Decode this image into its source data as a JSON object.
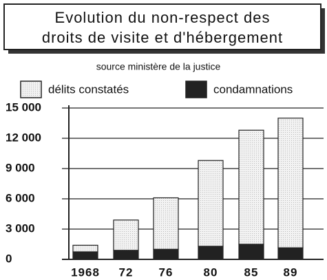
{
  "chart_data": {
    "type": "stacked_bar",
    "title": [
      "Evolution du non-respect des",
      "droits de visite et d'hébergement"
    ],
    "subtitle": "source   ministère de la justice",
    "categories": [
      "1968",
      "72",
      "76",
      "80",
      "85",
      "89"
    ],
    "series": [
      {
        "name": "condamnations",
        "color": "#222222",
        "values": [
          750,
          900,
          1000,
          1300,
          1500,
          1150
        ]
      },
      {
        "name": "délits constatés",
        "color": "#eeeeee",
        "values": [
          650,
          3000,
          5100,
          8500,
          11300,
          12850
        ]
      }
    ],
    "ylim": [
      0,
      15000
    ],
    "yticks": [
      0,
      {
        "value": 3000,
        "label": "3 000"
      },
      {
        "value": 6000,
        "label": "6 000"
      },
      {
        "value": 9000,
        "label": "9 000"
      },
      {
        "value": 12000,
        "label": "12 000"
      },
      {
        "value": 15000,
        "label": "15 000"
      }
    ],
    "grid": true
  }
}
